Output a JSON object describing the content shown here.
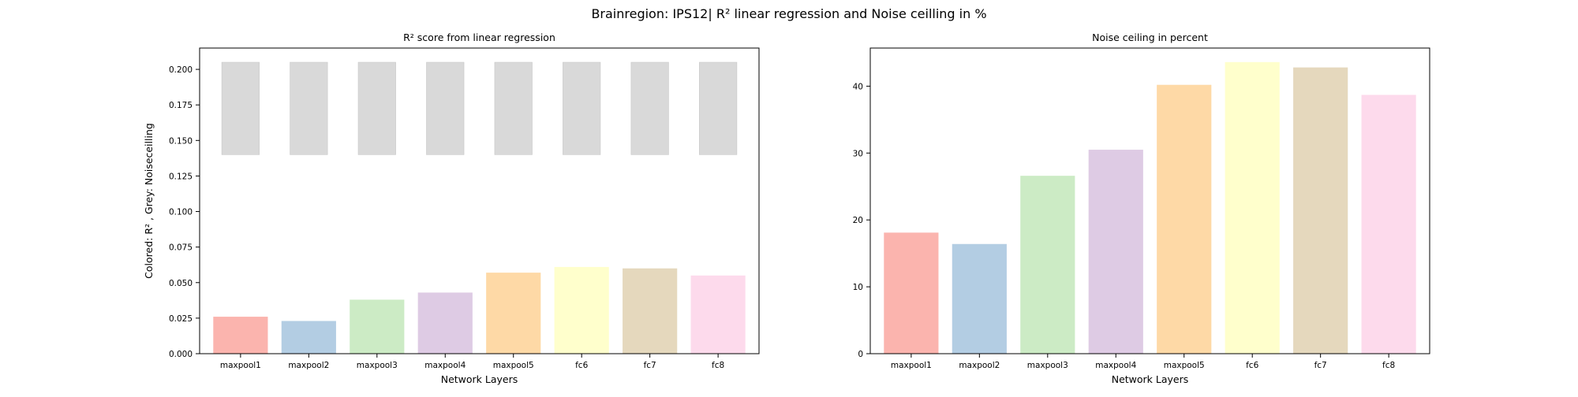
{
  "figure": {
    "suptitle": "Brainregion: IPS12| R² linear regression and Noise ceilling in %"
  },
  "chart_data": [
    {
      "type": "bar",
      "title": "R² score from linear regression",
      "xlabel": "Network Layers",
      "ylabel": "Colored: R² , Grey: Noiseceilling",
      "categories": [
        "maxpool1",
        "maxpool2",
        "maxpool3",
        "maxpool4",
        "maxpool5",
        "fc6",
        "fc7",
        "fc8"
      ],
      "ylim": [
        0,
        0.215
      ],
      "yticks": [
        0.0,
        0.025,
        0.05,
        0.075,
        0.1,
        0.125,
        0.15,
        0.175,
        0.2
      ],
      "ytick_labels": [
        "0.000",
        "0.025",
        "0.050",
        "0.075",
        "0.100",
        "0.125",
        "0.150",
        "0.175",
        "0.200"
      ],
      "series": [
        {
          "values": [
            0.026,
            0.023,
            0.038,
            0.043,
            0.057,
            0.061,
            0.06,
            0.055
          ],
          "colors": [
            "#fbb4ae",
            "#b3cde3",
            "#ccebc5",
            "#decbe4",
            "#fed9a6",
            "#ffffcc",
            "#e5d8bd",
            "#fddaec"
          ]
        },
        {
          "range_low": [
            0.14,
            0.14,
            0.14,
            0.14,
            0.14,
            0.14,
            0.14,
            0.14
          ],
          "range_high": [
            0.205,
            0.205,
            0.205,
            0.205,
            0.205,
            0.205,
            0.205,
            0.205
          ],
          "color": "#d9d9d9"
        }
      ],
      "grid": false,
      "legend": "none"
    },
    {
      "type": "bar",
      "title": "Noise ceiling in percent",
      "xlabel": "Network Layers",
      "ylabel": "",
      "categories": [
        "maxpool1",
        "maxpool2",
        "maxpool3",
        "maxpool4",
        "maxpool5",
        "fc6",
        "fc7",
        "fc8"
      ],
      "ylim": [
        0,
        45.7
      ],
      "yticks": [
        0,
        10,
        20,
        30,
        40
      ],
      "ytick_labels": [
        "0",
        "10",
        "20",
        "30",
        "40"
      ],
      "series": [
        {
          "values": [
            18.1,
            16.4,
            26.6,
            30.5,
            40.2,
            43.6,
            42.8,
            38.7
          ],
          "colors": [
            "#fbb4ae",
            "#b3cde3",
            "#ccebc5",
            "#decbe4",
            "#fed9a6",
            "#ffffcc",
            "#e5d8bd",
            "#fddaec"
          ]
        }
      ],
      "grid": false,
      "legend": "none"
    }
  ]
}
